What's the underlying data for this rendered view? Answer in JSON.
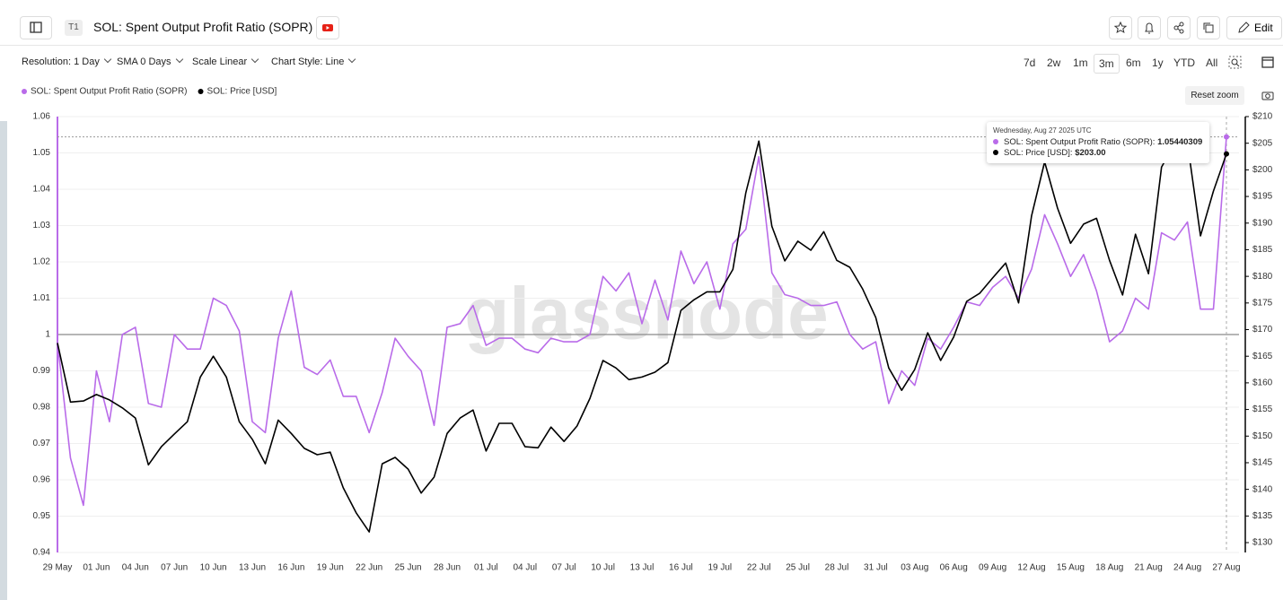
{
  "header": {
    "badge": "T1",
    "edit": "Edit"
  },
  "controls": [
    "Resolution: 1 Day",
    "SMA 0 Days",
    "Scale Linear",
    "Chart Style: Line"
  ],
  "ranges": [
    "7d",
    "2w",
    "1m",
    "3m",
    "6m",
    "1y",
    "YTD",
    "All"
  ],
  "reset_zoom": "Reset zoom",
  "watermark": "glassnode",
  "tooltip": {
    "date": "Wednesday, Aug 27 2025 UTC",
    "rows": [
      {
        "label": "SOL: Spent Output Profit Ratio (SOPR):",
        "value": "1.05440309"
      },
      {
        "label": "SOL: Price [USD]:",
        "value": "$203.00"
      }
    ]
  },
  "chart_data": {
    "type": "line",
    "title": "SOL: Spent Output Profit Ratio (SOPR)",
    "categories": [
      "29 May",
      null,
      null,
      "01 Jun",
      null,
      null,
      "04 Jun",
      null,
      null,
      "07 Jun",
      null,
      null,
      "10 Jun",
      null,
      null,
      "13 Jun",
      null,
      null,
      "16 Jun",
      null,
      null,
      "19 Jun",
      null,
      null,
      "22 Jun",
      null,
      null,
      "25 Jun",
      null,
      null,
      "28 Jun",
      null,
      null,
      "01 Jul",
      null,
      null,
      "04 Jul",
      null,
      null,
      "07 Jul",
      null,
      null,
      "10 Jul",
      null,
      null,
      "13 Jul",
      null,
      null,
      "16 Jul",
      null,
      null,
      "19 Jul",
      null,
      null,
      "22 Jul",
      null,
      null,
      "25 Jul",
      null,
      null,
      "28 Jul",
      null,
      null,
      "31 Jul",
      null,
      null,
      "03 Aug",
      null,
      null,
      "06 Aug",
      null,
      null,
      "09 Aug",
      null,
      null,
      "12 Aug",
      null,
      null,
      "15 Aug",
      null,
      null,
      "18 Aug",
      null,
      null,
      "21 Aug",
      null,
      null,
      "24 Aug",
      null,
      null,
      "27 Aug"
    ],
    "series": [
      {
        "name": "SOL: Spent Output Profit Ratio (SOPR)",
        "color": "#b96be9",
        "axis": "y",
        "values": [
          0.998,
          0.966,
          0.953,
          0.99,
          0.976,
          1.0,
          1.002,
          0.981,
          0.98,
          1.0,
          0.996,
          0.996,
          1.01,
          1.008,
          1.001,
          0.976,
          0.973,
          0.999,
          1.012,
          0.991,
          0.989,
          0.993,
          0.983,
          0.983,
          0.973,
          0.984,
          0.999,
          0.994,
          0.99,
          0.975,
          1.002,
          1.003,
          1.008,
          0.997,
          0.999,
          0.999,
          0.996,
          0.995,
          0.999,
          0.998,
          0.998,
          1.0,
          1.016,
          1.012,
          1.017,
          1.003,
          1.015,
          1.004,
          1.023,
          1.014,
          1.02,
          1.007,
          1.025,
          1.029,
          1.049,
          1.017,
          1.011,
          1.01,
          1.008,
          1.008,
          1.009,
          1.0,
          0.996,
          0.998,
          0.981,
          0.99,
          0.986,
          0.999,
          0.996,
          1.002,
          1.009,
          1.008,
          1.013,
          1.016,
          1.01,
          1.018,
          1.033,
          1.025,
          1.016,
          1.022,
          1.012,
          0.998,
          1.001,
          1.01,
          1.007,
          1.028,
          1.026,
          1.031,
          1.007,
          1.007,
          1.05440309
        ]
      },
      {
        "name": "SOL: Price [USD]",
        "color": "#000000",
        "axis": "y2",
        "values": [
          167.5,
          156.4,
          156.6,
          157.8,
          156.8,
          155.3,
          153.4,
          144.6,
          148,
          150.4,
          152.7,
          161.1,
          165,
          161.1,
          152.7,
          149.4,
          144.8,
          153,
          150.5,
          147.7,
          146.5,
          147,
          140.3,
          135.6,
          132,
          144.8,
          146,
          143.8,
          139.3,
          142.3,
          150.5,
          153.4,
          154.9,
          147.2,
          152.4,
          152.4,
          148,
          147.8,
          151.7,
          149,
          151.9,
          157.1,
          164.2,
          162.8,
          160.6,
          161.1,
          162,
          163.8,
          173.6,
          175.6,
          177.1,
          177.1,
          181.3,
          195.7,
          205.4,
          189.4,
          182.9,
          186.6,
          184.9,
          188.4,
          183,
          181.7,
          177.6,
          172.3,
          162.8,
          158.6,
          162.5,
          169.4,
          164.2,
          168.6,
          175.3,
          176.8,
          179.7,
          182.5,
          175,
          191.4,
          201.5,
          192.8,
          186.2,
          189.8,
          190.9,
          183,
          176.5,
          187.9,
          180.5,
          200.5,
          204.9,
          205,
          187.6,
          196,
          203
        ]
      }
    ],
    "ylim": [
      0.94,
      1.06
    ],
    "yticks": [
      0.94,
      0.95,
      0.96,
      0.97,
      0.98,
      0.99,
      1,
      1.01,
      1.02,
      1.03,
      1.04,
      1.05,
      1.06
    ],
    "y2lim": [
      128.15,
      210
    ],
    "y2ticks": [
      {
        "value": 130,
        "label": "$130"
      },
      {
        "value": 135,
        "label": "$135"
      },
      {
        "value": 140,
        "label": "$140"
      },
      {
        "value": 145,
        "label": "$145"
      },
      {
        "value": 150,
        "label": "$150"
      },
      {
        "value": 155,
        "label": "$155"
      },
      {
        "value": 160,
        "label": "$160"
      },
      {
        "value": 165,
        "label": "$165"
      },
      {
        "value": 170,
        "label": "$170"
      },
      {
        "value": 175,
        "label": "$175"
      },
      {
        "value": 180,
        "label": "$180"
      },
      {
        "value": 185,
        "label": "$185"
      },
      {
        "value": 190,
        "label": "$190"
      },
      {
        "value": 195,
        "label": "$195"
      },
      {
        "value": 200,
        "label": "$200"
      },
      {
        "value": 205,
        "label": "$205"
      },
      {
        "value": 210,
        "label": "$210"
      }
    ],
    "reference_line": 1,
    "grid": true,
    "legend": "top-left"
  }
}
